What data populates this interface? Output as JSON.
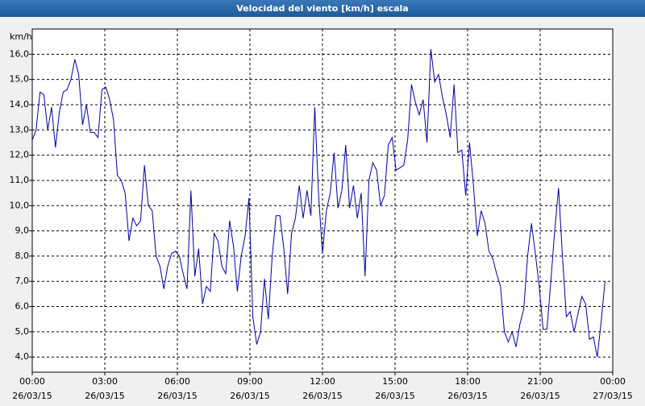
{
  "chart_data": {
    "type": "line",
    "title": "Velocidad del viento [km/h] escala",
    "y_label": "km/h",
    "xlim": [
      0,
      24
    ],
    "ylim": [
      3.4,
      17.0
    ],
    "grid": true,
    "xticks": [
      {
        "value": 0,
        "label": "00:00 26/03/15"
      },
      {
        "value": 3,
        "label": "03:00 26/03/15"
      },
      {
        "value": 6,
        "label": "06:00 26/03/15"
      },
      {
        "value": 9,
        "label": "09:00 26/03/15"
      },
      {
        "value": 12,
        "label": "12:00 26/03/15"
      },
      {
        "value": 15,
        "label": "15:00 26/03/15"
      },
      {
        "value": 18,
        "label": "18:00 26/03/15"
      },
      {
        "value": 21,
        "label": "21:00 26/03/15"
      },
      {
        "value": 24,
        "label": "00:00 27/03/15"
      }
    ],
    "yticks": [
      {
        "value": 4,
        "label": "4,0"
      },
      {
        "value": 5,
        "label": "5,0"
      },
      {
        "value": 6,
        "label": "6,0"
      },
      {
        "value": 7,
        "label": "7,0"
      },
      {
        "value": 8,
        "label": "8,0"
      },
      {
        "value": 9,
        "label": "9,0"
      },
      {
        "value": 10,
        "label": "10,0"
      },
      {
        "value": 11,
        "label": "11,0"
      },
      {
        "value": 12,
        "label": "12,0"
      },
      {
        "value": 13,
        "label": "13,0"
      },
      {
        "value": 14,
        "label": "14,0"
      },
      {
        "value": 15,
        "label": "15,0"
      },
      {
        "value": 16,
        "label": "16,0"
      }
    ],
    "x": [
      0,
      0.16,
      0.32,
      0.48,
      0.64,
      0.8,
      0.96,
      1.12,
      1.28,
      1.44,
      1.6,
      1.76,
      1.92,
      2.08,
      2.24,
      2.4,
      2.56,
      2.72,
      2.88,
      3.04,
      3.2,
      3.36,
      3.52,
      3.68,
      3.84,
      4,
      4.16,
      4.32,
      4.48,
      4.64,
      4.8,
      4.96,
      5.12,
      5.28,
      5.44,
      5.6,
      5.76,
      5.92,
      6.08,
      6.24,
      6.4,
      6.56,
      6.72,
      6.88,
      7.04,
      7.2,
      7.36,
      7.52,
      7.68,
      7.84,
      8,
      8.16,
      8.32,
      8.48,
      8.64,
      8.8,
      8.96,
      9.12,
      9.28,
      9.44,
      9.6,
      9.76,
      9.92,
      10.08,
      10.24,
      10.4,
      10.56,
      10.72,
      10.88,
      11.04,
      11.2,
      11.36,
      11.52,
      11.68,
      11.84,
      12,
      12.16,
      12.32,
      12.48,
      12.64,
      12.8,
      12.96,
      13.12,
      13.28,
      13.44,
      13.6,
      13.76,
      13.92,
      14.08,
      14.24,
      14.4,
      14.56,
      14.72,
      14.88,
      15.04,
      15.2,
      15.36,
      15.52,
      15.68,
      15.84,
      16,
      16.16,
      16.32,
      16.48,
      16.64,
      16.8,
      16.96,
      17.12,
      17.28,
      17.44,
      17.6,
      17.76,
      17.92,
      18.08,
      18.24,
      18.4,
      18.56,
      18.72,
      18.88,
      19.04,
      19.2,
      19.36,
      19.52,
      19.68,
      19.84,
      20,
      20.16,
      20.32,
      20.48,
      20.64,
      20.8,
      20.96,
      21.12,
      21.28,
      21.44,
      21.6,
      21.76,
      21.92,
      22.08,
      22.24,
      22.4,
      22.56,
      22.72,
      22.88,
      23.04,
      23.2,
      23.36,
      23.52,
      23.68
    ],
    "series": [
      {
        "color": "#0000a0",
        "values": [
          12.6,
          13.0,
          14.5,
          14.4,
          13.0,
          13.9,
          12.3,
          13.7,
          14.5,
          14.6,
          15.0,
          15.8,
          15.2,
          13.2,
          14.0,
          12.9,
          12.9,
          12.7,
          14.6,
          14.7,
          14.2,
          13.4,
          11.2,
          11.0,
          10.5,
          8.6,
          9.5,
          9.2,
          9.4,
          11.6,
          10.0,
          9.8,
          8.0,
          7.6,
          6.7,
          7.6,
          8.1,
          8.2,
          8.0,
          7.3,
          6.7,
          10.6,
          7.2,
          8.3,
          6.1,
          6.8,
          6.6,
          8.9,
          8.6,
          7.6,
          7.3,
          9.4,
          8.4,
          6.6,
          8.0,
          8.8,
          10.3,
          5.6,
          4.5,
          5.0,
          7.1,
          5.5,
          8.0,
          9.6,
          9.6,
          8.3,
          6.5,
          8.9,
          9.5,
          10.8,
          9.5,
          10.6,
          9.6,
          13.9,
          10.4,
          8.1,
          9.8,
          10.5,
          12.1,
          9.9,
          10.6,
          12.4,
          9.9,
          10.8,
          9.5,
          10.5,
          7.2,
          11.0,
          11.7,
          11.4,
          10.0,
          10.4,
          12.4,
          12.7,
          11.4,
          11.5,
          11.6,
          12.6,
          14.8,
          14.1,
          13.6,
          14.2,
          12.5,
          16.2,
          14.9,
          15.2,
          14.3,
          13.6,
          12.7,
          14.8,
          12.1,
          12.2,
          10.4,
          12.5,
          10.8,
          8.8,
          9.8,
          9.3,
          8.2,
          7.9,
          7.3,
          6.8,
          5.0,
          4.6,
          5.0,
          4.4,
          5.3,
          5.9,
          8.0,
          9.3,
          8.1,
          6.8,
          5.1,
          5.1,
          7.0,
          9.0,
          10.7,
          8.0,
          5.6,
          5.8,
          5.0,
          5.7,
          6.4,
          6.1,
          4.7,
          4.8,
          4.0,
          5.4,
          7.0
        ]
      }
    ]
  }
}
